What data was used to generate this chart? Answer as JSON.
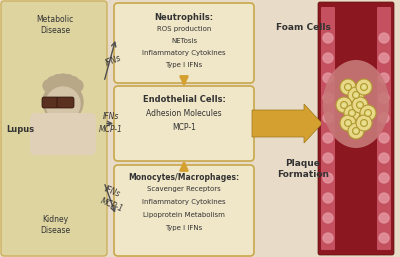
{
  "bg_color": "#e8dbc8",
  "left_panel_color": "#ddd4a0",
  "box_border_color": "#c8a84a",
  "box_face_color": "#f0e6c8",
  "arrow_color": "#d4a030",
  "dark_arrow_color": "#505050",
  "text_color": "#333333",
  "lupus_label": "Lupus",
  "metabolic_label": "Metabolic\nDisease",
  "kidney_label": "Kidney\nDisease",
  "neutrophil_title": "Neutrophils:",
  "neutrophil_items": [
    "ROS production",
    "NETosis",
    "Inflammatory Cytokines",
    "Type I IFNs"
  ],
  "endothelial_title": "Endothelial Cells:",
  "endothelial_items": [
    "Adhesion Molecules",
    "MCP-1"
  ],
  "monocyte_title": "Monocytes/Macrophages:",
  "monocyte_items": [
    "Scavenger Receptors",
    "Inflammatory Cytokines",
    "Lipoprotein Metabolism",
    "Type I IFNs"
  ],
  "foam_label": "Foam Cells",
  "plaque_label": "Plaque\nFormation",
  "vessel_outer_color": "#8b1820",
  "vessel_wall_color": "#c45060",
  "vessel_endothelial_color": "#e8a0a8",
  "foam_cell_color": "#e8d888",
  "foam_cell_inner": "#d4c060",
  "foam_cell_outline": "#b09830",
  "skin_color": "#d4c4a8",
  "hair_color": "#b8a888",
  "glasses_color": "#5a3020",
  "shoulder_color": "#e0d0b8"
}
